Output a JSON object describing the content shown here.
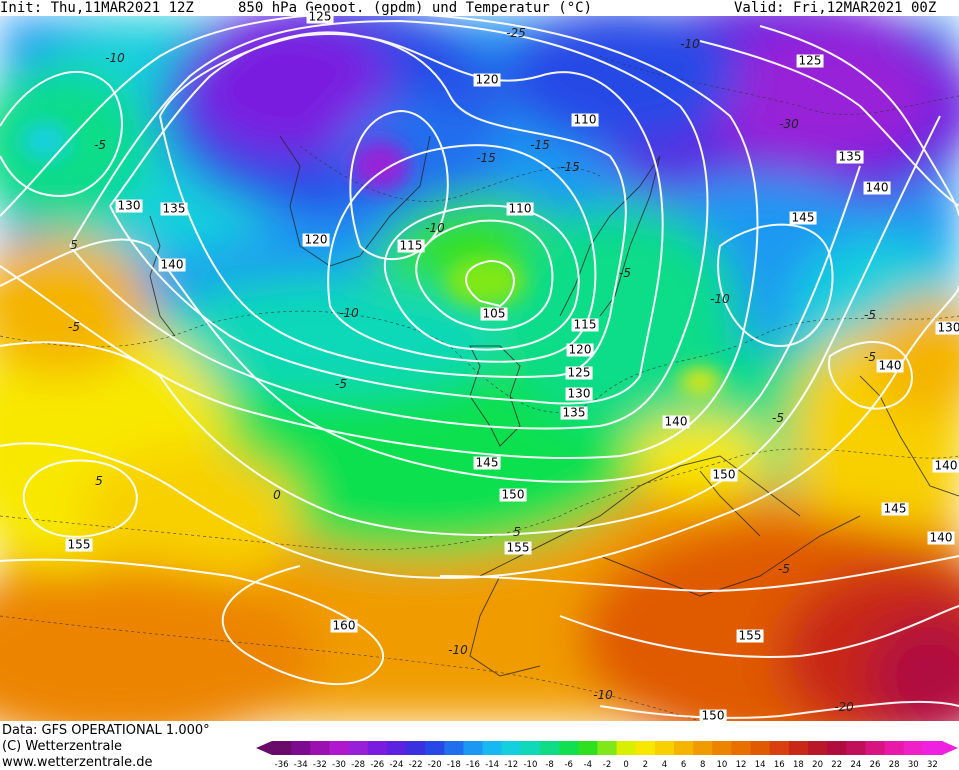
{
  "header": {
    "init": "Init: Thu,11MAR2021 12Z",
    "title": "850 hPa Geopot. (gpdm) und Temperatur (°C)",
    "valid": "Valid: Fri,12MAR2021 00Z"
  },
  "map": {
    "geopotential_labels": [
      "125",
      "120",
      "120",
      "110",
      "110",
      "105",
      "115",
      "115",
      "120",
      "125",
      "130",
      "135",
      "140",
      "145",
      "150",
      "155",
      "155",
      "160",
      "130",
      "135",
      "140",
      "125",
      "135",
      "140",
      "145",
      "140",
      "140",
      "145",
      "150",
      "155",
      "150",
      "130",
      "140"
    ],
    "temperature_labels": [
      "-25",
      "-10",
      "-15",
      "-15",
      "-10",
      "-10",
      "-5",
      "-5",
      "-10",
      "-30",
      "-5",
      "-5",
      "-5",
      "5",
      "0",
      "5",
      "-5",
      "-10",
      "-5",
      "-10",
      "-20",
      "5",
      "-10",
      "-5",
      "-15"
    ]
  },
  "footer": {
    "data_line": "Data: GFS OPERATIONAL 1.000°",
    "copyright": "(C) Wetterzentrale",
    "url": "www.wetterzentrale.de"
  },
  "colorbar": {
    "ticks": [
      "-36",
      "-34",
      "-32",
      "-30",
      "-28",
      "-26",
      "-24",
      "-22",
      "-20",
      "-18",
      "-16",
      "-14",
      "-12",
      "-10",
      "-8",
      "-6",
      "-4",
      "-2",
      "0",
      "2",
      "4",
      "6",
      "8",
      "10",
      "12",
      "14",
      "16",
      "18",
      "20",
      "22",
      "24",
      "26",
      "28",
      "30",
      "32"
    ],
    "colors": [
      "#6a0a6a",
      "#7d0b8d",
      "#9a10b0",
      "#b018cc",
      "#9820d8",
      "#7a1ce0",
      "#5c22e0",
      "#3a30e0",
      "#2848e6",
      "#2070ee",
      "#1c98f2",
      "#18b8f0",
      "#14d0dc",
      "#10d8b8",
      "#10dc88",
      "#10e050",
      "#30e020",
      "#80e818",
      "#d8f000",
      "#f8e800",
      "#f8d000",
      "#f4b400",
      "#f09c00",
      "#ec8400",
      "#e87000",
      "#e05a00",
      "#d84010",
      "#c82818",
      "#b81828",
      "#b00c40",
      "#c0105a",
      "#d81480",
      "#e818a8",
      "#f020c8",
      "#f020e0"
    ]
  }
}
